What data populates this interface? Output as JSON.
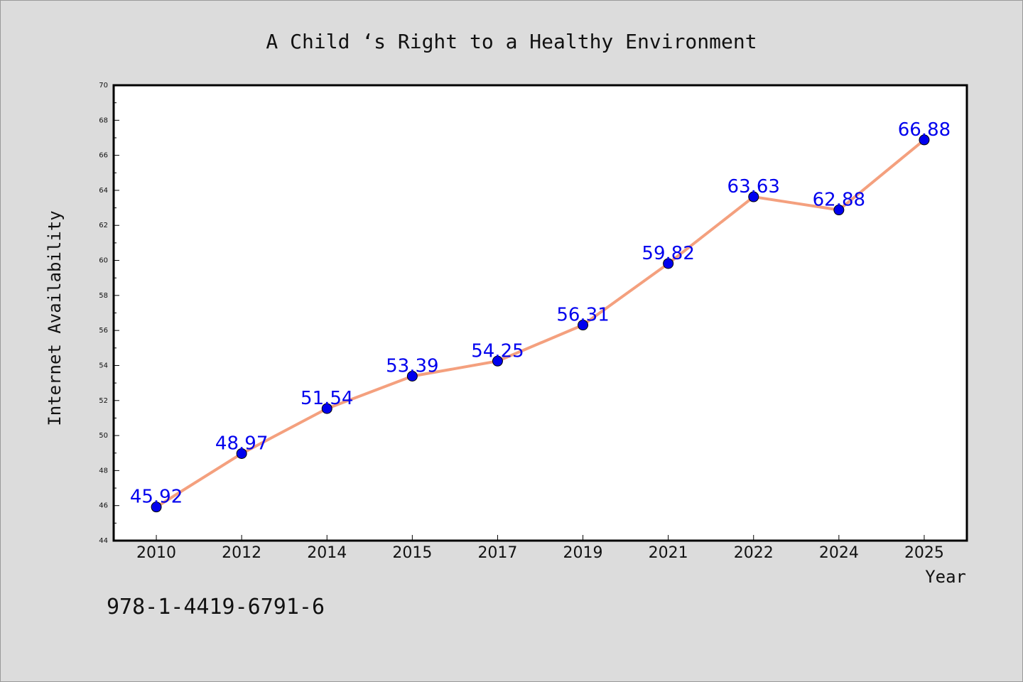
{
  "chart_data": {
    "type": "line",
    "title": "A Child ‘s Right to a Healthy Environment",
    "xlabel": "Year",
    "ylabel": "Internet Availability",
    "categories": [
      "2010",
      "2012",
      "2014",
      "2015",
      "2017",
      "2019",
      "2021",
      "2022",
      "2024",
      "2025"
    ],
    "series": [
      {
        "values": [
          45.92,
          48.97,
          51.54,
          53.39,
          54.25,
          56.31,
          59.82,
          63.63,
          62.88,
          66.88
        ]
      }
    ],
    "data_labels": [
      "45.92",
      "48.97",
      "51.54",
      "53.39",
      "54.25",
      "56.31",
      "59.82",
      "63.63",
      "62.88",
      "66.88"
    ],
    "ylim": [
      44,
      70
    ],
    "y_ticks": [
      44,
      46,
      48,
      50,
      52,
      54,
      56,
      58,
      60,
      62,
      64,
      66,
      68,
      70
    ],
    "grid": false,
    "line_color": "#f4a07e",
    "marker_color": "#0000ee",
    "label_color": "#0000ee"
  },
  "footer": {
    "isbn": "978-1-4419-6791-6"
  }
}
